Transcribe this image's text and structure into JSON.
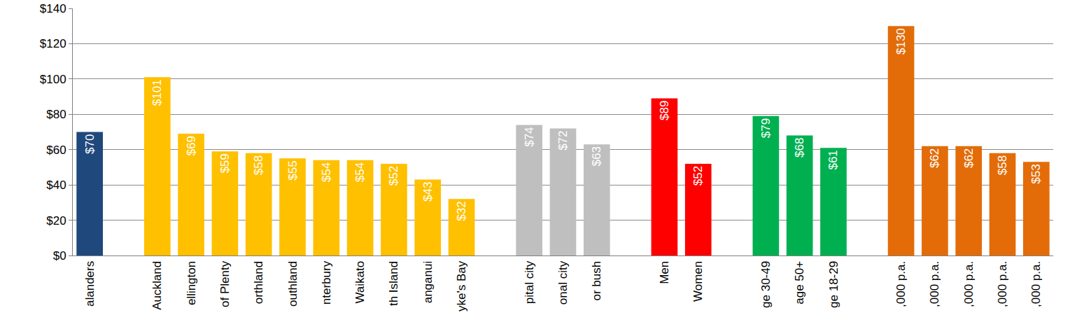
{
  "chart_data": {
    "type": "bar",
    "categories": [
      "alanders",
      null,
      "Auckland",
      "ellington",
      "of Plenty",
      "orthland",
      "outhland",
      "nterbury",
      "Waikato",
      "th Island",
      "anganui",
      "yke's Bay",
      null,
      "pital city",
      "onal city",
      "or bush",
      null,
      "Men",
      "Women",
      null,
      "ge 30-49",
      "age 50+",
      "ge 18-29",
      null,
      ",000 p.a.",
      ",000 p.a.",
      ",000 p.a.",
      ",000 p.a.",
      ",000 p.a."
    ],
    "values": [
      70,
      null,
      101,
      69,
      59,
      58,
      55,
      54,
      54,
      52,
      43,
      32,
      null,
      74,
      72,
      63,
      null,
      89,
      52,
      null,
      79,
      68,
      61,
      null,
      130,
      62,
      62,
      58,
      53
    ],
    "value_labels": [
      "$70",
      null,
      "$101",
      "$69",
      "$59",
      "$58",
      "$55",
      "$54",
      "$54",
      "$52",
      "$43",
      "$32",
      null,
      "$74",
      "$72",
      "$63",
      null,
      "$89",
      "$52",
      null,
      "$79",
      "$68",
      "$61",
      null,
      "$130",
      "$62",
      "$62",
      "$58",
      "$53"
    ],
    "colors": [
      "#1F497D",
      null,
      "#FFC000",
      "#FFC000",
      "#FFC000",
      "#FFC000",
      "#FFC000",
      "#FFC000",
      "#FFC000",
      "#FFC000",
      "#FFC000",
      "#FFC000",
      null,
      "#BFBFBF",
      "#BFBFBF",
      "#BFBFBF",
      null,
      "#FF0000",
      "#FF0000",
      null,
      "#00B050",
      "#00B050",
      "#00B050",
      null,
      "#E36C09",
      "#E36C09",
      "#E36C09",
      "#E36C09",
      "#E36C09"
    ],
    "ylim": [
      0,
      140
    ],
    "yticks": [
      {
        "value": 0,
        "label": "$0"
      },
      {
        "value": 20,
        "label": "$20"
      },
      {
        "value": 40,
        "label": "$40"
      },
      {
        "value": 60,
        "label": "$60"
      },
      {
        "value": 80,
        "label": "$80"
      },
      {
        "value": 100,
        "label": "$100"
      },
      {
        "value": 120,
        "label": "$120"
      },
      {
        "value": 140,
        "label": "$140"
      }
    ],
    "grid": true,
    "data_labels": true
  }
}
